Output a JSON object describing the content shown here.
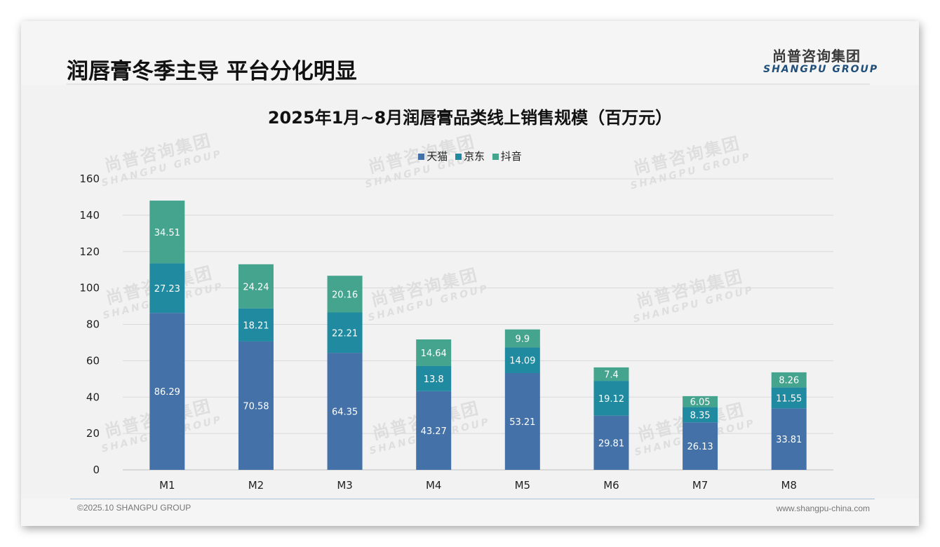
{
  "slide": {
    "headline": "润唇膏冬季主导 平台分化明显",
    "logo": {
      "cn": "尚普咨询集团",
      "en": "SHANGPU GROUP"
    },
    "watermark": {
      "cn": "尚普咨询集团",
      "en": "SHANGPU GROUP"
    },
    "footer": {
      "left": "©2025.10 SHANGPU GROUP",
      "right": "www.shangpu-china.com"
    }
  },
  "colors": {
    "tmall": "#4472a8",
    "jd": "#1f8aa0",
    "douyin": "#44a48e",
    "grid": "#d9d9d9",
    "axis": "#bfbfbf"
  },
  "chart_data": {
    "type": "bar",
    "stacked": true,
    "title": "2025年1月~8月润唇膏品类线上销售规模（百万元）",
    "xlabel": "",
    "ylabel": "",
    "categories": [
      "M1",
      "M2",
      "M3",
      "M4",
      "M5",
      "M6",
      "M7",
      "M8"
    ],
    "series": [
      {
        "name": "天猫",
        "color_key": "tmall",
        "values": [
          86.29,
          70.58,
          64.35,
          43.27,
          53.21,
          29.81,
          26.13,
          33.81
        ]
      },
      {
        "name": "京东",
        "color_key": "jd",
        "values": [
          27.23,
          18.21,
          22.21,
          13.8,
          14.09,
          19.12,
          8.35,
          11.55
        ]
      },
      {
        "name": "抖音",
        "color_key": "douyin",
        "values": [
          34.51,
          24.24,
          20.16,
          14.64,
          9.9,
          7.4,
          6.05,
          8.26
        ]
      }
    ],
    "ylim": [
      0,
      160
    ],
    "yticks": [
      0,
      20,
      40,
      60,
      80,
      100,
      120,
      140,
      160
    ],
    "ytick_labels": [
      "0",
      "20",
      "40",
      "60",
      "80",
      "100",
      "120",
      "140",
      "160"
    ],
    "grid": true,
    "legend": "top-center",
    "data_labels": true
  }
}
